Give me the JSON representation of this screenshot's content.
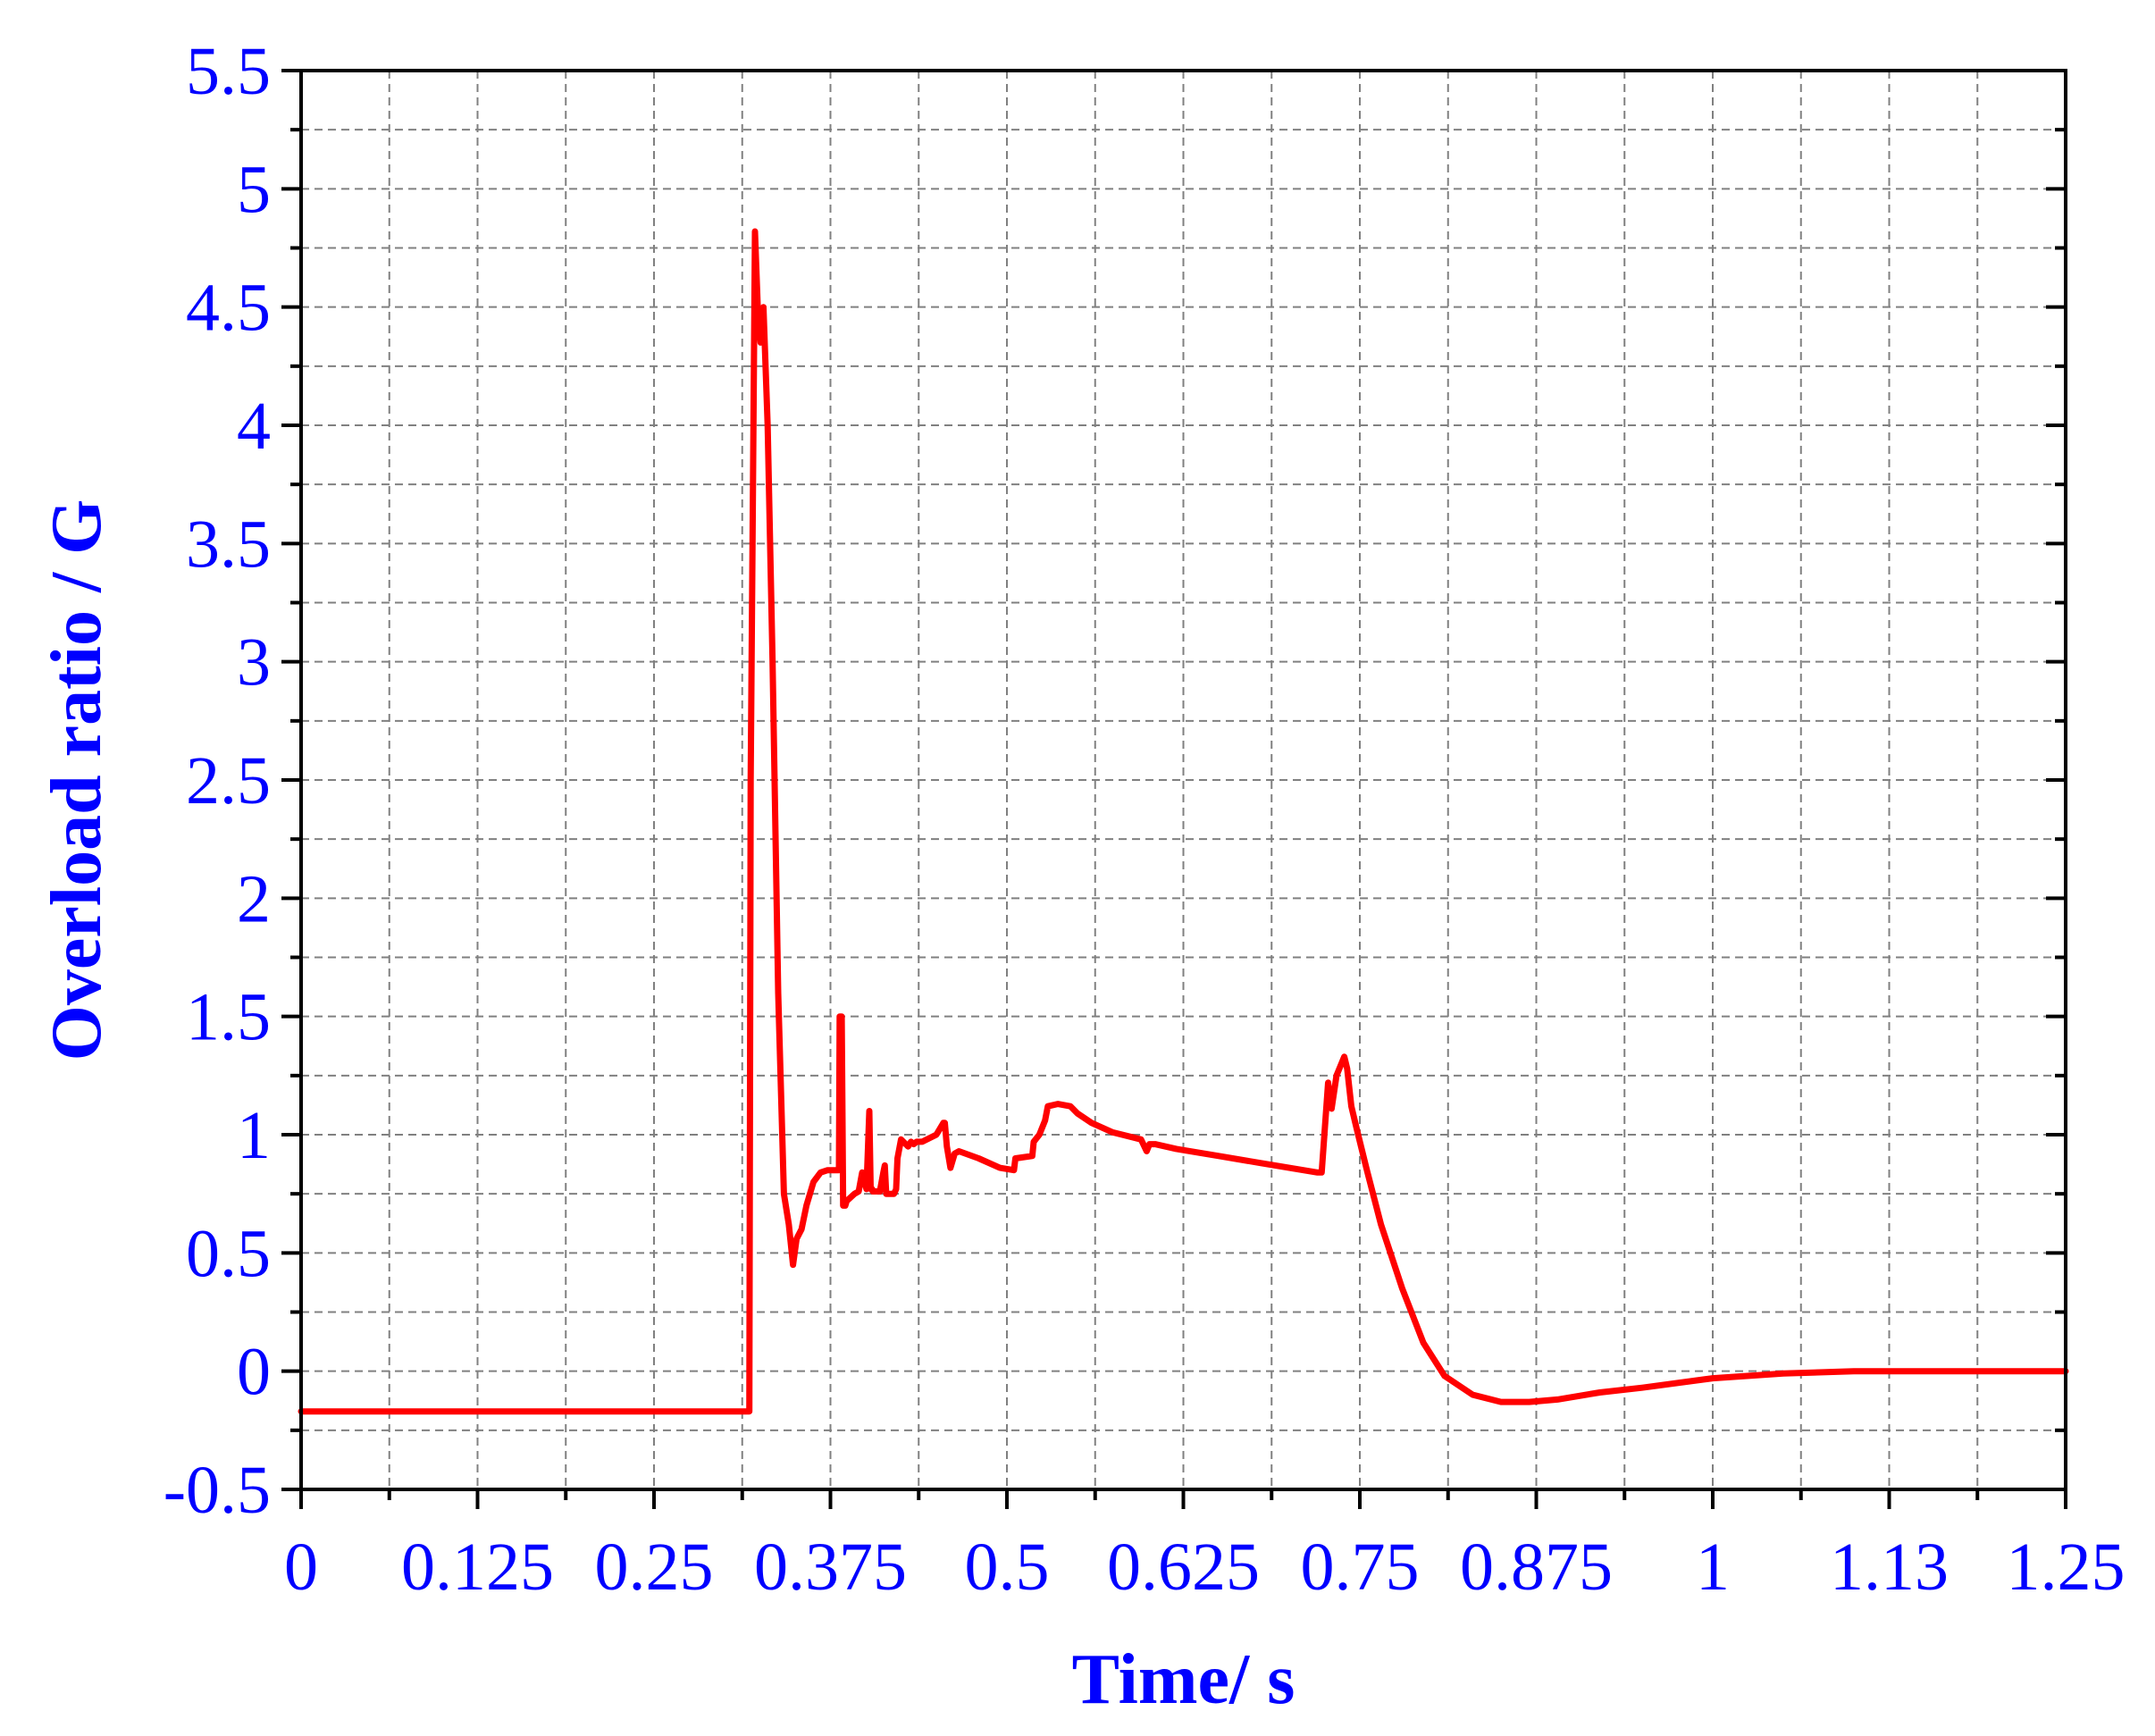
{
  "colors": {
    "text": "#0000ff",
    "series": "#ff0000",
    "axis": "#000000",
    "grid": "#808080",
    "background": "#ffffff"
  },
  "chart_data": {
    "type": "line",
    "title": "",
    "xlabel": "Time/ s",
    "ylabel": "Overload ratio / G",
    "xlim": [
      0,
      1.25
    ],
    "ylim": [
      -0.5,
      5.5
    ],
    "grid": true,
    "legend": "none",
    "x_ticks": [
      0,
      0.125,
      0.25,
      0.375,
      0.5,
      0.625,
      0.75,
      0.875,
      1,
      1.125,
      1.25
    ],
    "x_tick_labels": [
      "0",
      "0.125",
      "0.25",
      "0.375",
      "0.5",
      "0.625",
      "0.75",
      "0.875",
      "1",
      "1.13",
      "1.25"
    ],
    "y_ticks": [
      -0.5,
      0,
      0.5,
      1,
      1.5,
      2,
      2.5,
      3,
      3.5,
      4,
      4.5,
      5,
      5.5
    ],
    "y_tick_labels": [
      "-0.5",
      "0",
      "0.5",
      "1",
      "1.5",
      "2",
      "2.5",
      "3",
      "3.5",
      "4",
      "4.5",
      "5",
      "5.5"
    ],
    "series": [
      {
        "x": [
          0,
          0.1,
          0.2,
          0.3,
          0.3175,
          0.3185,
          0.3215,
          0.3235,
          0.3255,
          0.3275,
          0.3305,
          0.334,
          0.338,
          0.342,
          0.3455,
          0.3485,
          0.351,
          0.3545,
          0.358,
          0.363,
          0.368,
          0.373,
          0.378,
          0.381,
          0.3815,
          0.383,
          0.384,
          0.3855,
          0.3865,
          0.392,
          0.395,
          0.3975,
          0.4005,
          0.4025,
          0.4035,
          0.4045,
          0.405,
          0.41,
          0.4125,
          0.4135,
          0.4145,
          0.42,
          0.4215,
          0.4225,
          0.425,
          0.43,
          0.432,
          0.434,
          0.436,
          0.44,
          0.45,
          0.455,
          0.456,
          0.4575,
          0.46,
          0.463,
          0.466,
          0.48,
          0.495,
          0.505,
          0.506,
          0.518,
          0.519,
          0.523,
          0.527,
          0.529,
          0.536,
          0.545,
          0.55,
          0.56,
          0.575,
          0.595,
          0.599,
          0.601,
          0.605,
          0.62,
          0.65,
          0.68,
          0.7,
          0.72,
          0.723,
          0.7275,
          0.73,
          0.7335,
          0.739,
          0.741,
          0.744,
          0.748,
          0.755,
          0.765,
          0.78,
          0.795,
          0.81,
          0.83,
          0.85,
          0.87,
          0.89,
          0.92,
          0.95,
          1.0,
          1.05,
          1.1,
          1.15,
          1.2,
          1.25
        ],
        "y": [
          -0.17,
          -0.17,
          -0.17,
          -0.17,
          -0.17,
          2.5,
          4.82,
          4.5,
          4.35,
          4.5,
          4.0,
          3.0,
          1.6,
          0.75,
          0.62,
          0.45,
          0.56,
          0.6,
          0.7,
          0.8,
          0.84,
          0.85,
          0.85,
          0.85,
          1.5,
          1.5,
          0.7,
          0.7,
          0.72,
          0.75,
          0.76,
          0.84,
          0.77,
          1.1,
          0.77,
          0.77,
          0.76,
          0.76,
          0.84,
          0.87,
          0.75,
          0.75,
          0.77,
          0.9,
          0.98,
          0.95,
          0.97,
          0.96,
          0.97,
          0.97,
          1.0,
          1.05,
          1.05,
          0.95,
          0.86,
          0.92,
          0.93,
          0.9,
          0.86,
          0.85,
          0.9,
          0.91,
          0.97,
          1.0,
          1.06,
          1.12,
          1.13,
          1.12,
          1.09,
          1.05,
          1.01,
          0.98,
          0.93,
          0.96,
          0.96,
          0.94,
          0.91,
          0.88,
          0.86,
          0.84,
          0.84,
          1.22,
          1.11,
          1.25,
          1.33,
          1.28,
          1.12,
          1.02,
          0.85,
          0.62,
          0.35,
          0.12,
          -0.02,
          -0.1,
          -0.13,
          -0.13,
          -0.12,
          -0.09,
          -0.07,
          -0.03,
          -0.01,
          0.0,
          0.0,
          0.0,
          0.0
        ]
      }
    ]
  }
}
